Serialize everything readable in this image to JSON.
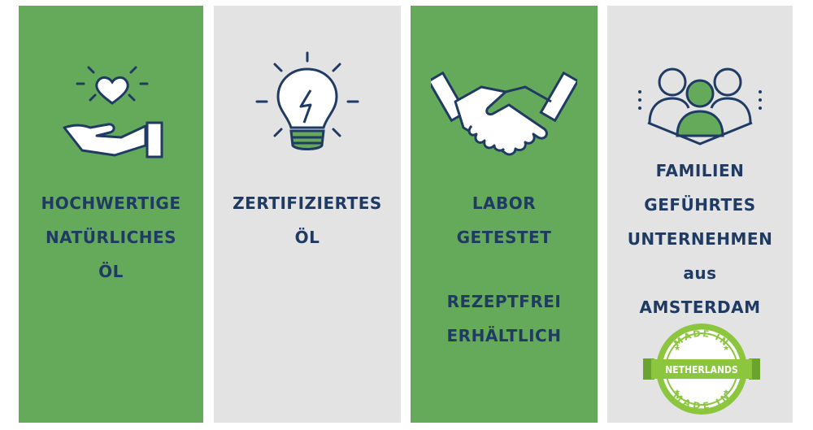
{
  "panels": [
    {
      "lines": [
        "HOCHWERTIGE",
        "NATÜRLICHES",
        "ÖL"
      ],
      "icon": "heart-hand-icon"
    },
    {
      "lines": [
        "ZERTIFIZIERTES",
        "ÖL"
      ],
      "icon": "lightbulb-icon"
    },
    {
      "lines": [
        "LABOR",
        "GETESTET"
      ],
      "lines2": [
        "REZEPTFREI",
        "ERHÄLTLICH"
      ],
      "icon": "handshake-icon"
    },
    {
      "lines": [
        "FAMILIEN",
        "GEFÜHRTES",
        "UNTERNEHMEN",
        "aus",
        "AMSTERDAM"
      ],
      "icon": "family-icon"
    }
  ],
  "badge": {
    "top": "MADE IN",
    "center": "NETHERLANDS",
    "bottom": "MADE IN"
  },
  "colors": {
    "green": "#65a95a",
    "grey": "#e3e3e3",
    "navy": "#1f3b64",
    "badge_green": "#8cc63f"
  }
}
